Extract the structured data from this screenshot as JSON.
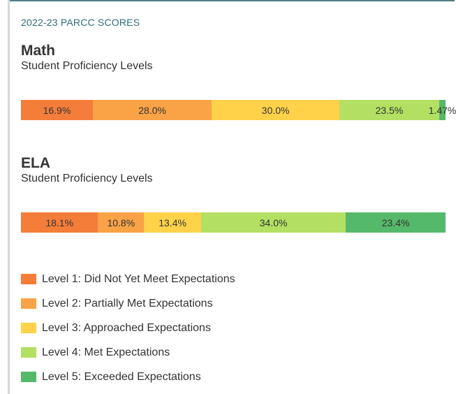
{
  "header": {
    "label": "2022-23 PARCC SCORES"
  },
  "chart_data": [
    {
      "type": "bar",
      "title": "Math",
      "subtitle": "Student Proficiency Levels",
      "stacked": true,
      "orientation": "horizontal",
      "categories": [
        "Level 1",
        "Level 2",
        "Level 3",
        "Level 4",
        "Level 5"
      ],
      "values": [
        16.9,
        28.0,
        30.0,
        23.5,
        1.47
      ],
      "labels": [
        "16.9%",
        "28.0%",
        "30.0%",
        "23.5%",
        "1.47%"
      ]
    },
    {
      "type": "bar",
      "title": "ELA",
      "subtitle": "Student Proficiency Levels",
      "stacked": true,
      "orientation": "horizontal",
      "categories": [
        "Level 1",
        "Level 2",
        "Level 3",
        "Level 4",
        "Level 5"
      ],
      "values": [
        18.1,
        10.8,
        13.4,
        34.0,
        23.4
      ],
      "labels": [
        "18.1%",
        "10.8%",
        "13.4%",
        "34.0%",
        "23.4%"
      ]
    }
  ],
  "legend": {
    "items": [
      {
        "label": "Level 1: Did Not Yet Meet Expectations",
        "color": "#f47d3a"
      },
      {
        "label": "Level 2: Partially Met Expectations",
        "color": "#faa246"
      },
      {
        "label": "Level 3: Approached Expectations",
        "color": "#ffd24a"
      },
      {
        "label": "Level 4: Met Expectations",
        "color": "#b3df62"
      },
      {
        "label": "Level 5: Exceeded Expectations",
        "color": "#55b96b"
      }
    ]
  }
}
